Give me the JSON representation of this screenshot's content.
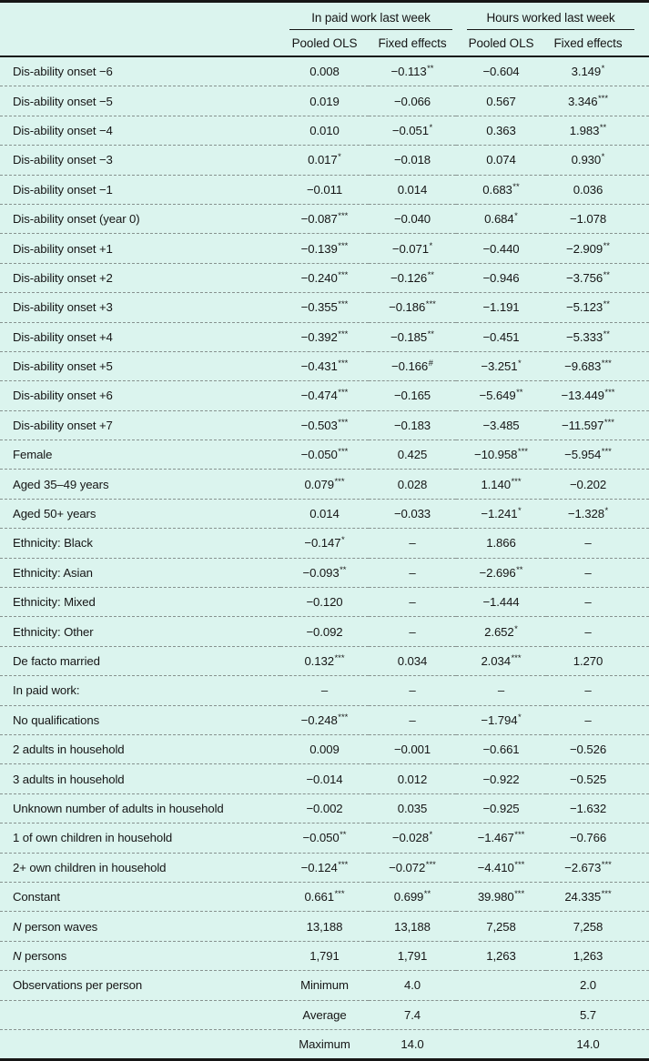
{
  "colors": {
    "background": "#dbf4ee",
    "text": "#161616",
    "rule": "#161616",
    "dashed_separator": "#87928f"
  },
  "table": {
    "groups": [
      "In paid work last week",
      "Hours worked last week"
    ],
    "sub_headers": [
      "Pooled OLS",
      "Fixed effects",
      "Pooled OLS",
      "Fixed effects"
    ],
    "rows": [
      {
        "label": "Dis-ability onset −6",
        "cells": [
          "0.008",
          "−0.113**",
          "−0.604",
          "3.149*"
        ]
      },
      {
        "label": "Dis-ability onset −5",
        "cells": [
          "0.019",
          "−0.066",
          "0.567",
          "3.346***"
        ]
      },
      {
        "label": "Dis-ability onset −4",
        "cells": [
          "0.010",
          "−0.051*",
          "0.363",
          "1.983**"
        ]
      },
      {
        "label": "Dis-ability onset −3",
        "cells": [
          "0.017*",
          "−0.018",
          "0.074",
          "0.930*"
        ]
      },
      {
        "label": "Dis-ability onset −1",
        "cells": [
          "−0.011",
          "0.014",
          "0.683**",
          "0.036"
        ]
      },
      {
        "label": "Dis-ability onset (year 0)",
        "cells": [
          "−0.087***",
          "−0.040",
          "0.684*",
          "−1.078"
        ]
      },
      {
        "label": "Dis-ability onset +1",
        "cells": [
          "−0.139***",
          "−0.071*",
          "−0.440",
          "−2.909**"
        ]
      },
      {
        "label": "Dis-ability onset +2",
        "cells": [
          "−0.240***",
          "−0.126**",
          "−0.946",
          "−3.756**"
        ]
      },
      {
        "label": "Dis-ability onset +3",
        "cells": [
          "−0.355***",
          "−0.186***",
          "−1.191",
          "−5.123**"
        ]
      },
      {
        "label": "Dis-ability onset +4",
        "cells": [
          "−0.392***",
          "−0.185**",
          "−0.451",
          "−5.333**"
        ]
      },
      {
        "label": "Dis-ability onset +5",
        "cells": [
          "−0.431***",
          "−0.166#",
          "−3.251*",
          "−9.683***"
        ]
      },
      {
        "label": "Dis-ability onset +6",
        "cells": [
          "−0.474***",
          "−0.165",
          "−5.649**",
          "−13.449***"
        ]
      },
      {
        "label": "Dis-ability onset +7",
        "cells": [
          "−0.503***",
          "−0.183",
          "−3.485",
          "−11.597***"
        ]
      },
      {
        "label": "Female",
        "cells": [
          "−0.050***",
          "0.425",
          "−10.958***",
          "−5.954***"
        ]
      },
      {
        "label": "Aged 35–49 years",
        "cells": [
          "0.079***",
          "0.028",
          "1.140***",
          "−0.202"
        ]
      },
      {
        "label": "Aged 50+ years",
        "cells": [
          "0.014",
          "−0.033",
          "−1.241*",
          "−1.328*"
        ]
      },
      {
        "label": "Ethnicity: Black",
        "cells": [
          "−0.147*",
          "–",
          "1.866",
          "–"
        ]
      },
      {
        "label": "Ethnicity: Asian",
        "cells": [
          "−0.093**",
          "–",
          "−2.696**",
          "–"
        ]
      },
      {
        "label": "Ethnicity: Mixed",
        "cells": [
          "−0.120",
          "–",
          "−1.444",
          "–"
        ]
      },
      {
        "label": "Ethnicity: Other",
        "cells": [
          "−0.092",
          "–",
          "2.652*",
          "–"
        ]
      },
      {
        "label": "De facto married",
        "cells": [
          "0.132***",
          "0.034",
          "2.034***",
          "1.270"
        ]
      },
      {
        "label": "In paid work:",
        "cells": [
          "–",
          "–",
          "–",
          "–"
        ]
      },
      {
        "label": "No qualifications",
        "cells": [
          "−0.248***",
          "–",
          "−1.794*",
          "–"
        ]
      },
      {
        "label": "2 adults in household",
        "cells": [
          "0.009",
          "−0.001",
          "−0.661",
          "−0.526"
        ]
      },
      {
        "label": "3 adults in household",
        "cells": [
          "−0.014",
          "0.012",
          "−0.922",
          "−0.525"
        ]
      },
      {
        "label": "Unknown number of adults in household",
        "cells": [
          "−0.002",
          "0.035",
          "−0.925",
          "−1.632"
        ]
      },
      {
        "label": "1 of own children in household",
        "cells": [
          "−0.050**",
          "−0.028*",
          "−1.467***",
          "−0.766"
        ]
      },
      {
        "label": "2+ own children in household",
        "cells": [
          "−0.124***",
          "−0.072***",
          "−4.410***",
          "−2.673***"
        ]
      },
      {
        "label": "Constant",
        "cells": [
          "0.661***",
          "0.699**",
          "39.980***",
          "24.335***"
        ]
      },
      {
        "label": "N person waves",
        "italic_lead": true,
        "cells": [
          "13,188",
          "13,188",
          "7,258",
          "7,258"
        ]
      },
      {
        "label": "N persons",
        "italic_lead": true,
        "cells": [
          "1,791",
          "1,791",
          "1,263",
          "1,263"
        ]
      },
      {
        "label": "Observations per person",
        "cells": [
          "Minimum",
          "4.0",
          "",
          "2.0"
        ]
      },
      {
        "label": "",
        "cells": [
          "Average",
          "7.4",
          "",
          "5.7"
        ]
      },
      {
        "label": "",
        "cells": [
          "Maximum",
          "14.0",
          "",
          "14.0"
        ]
      }
    ]
  }
}
